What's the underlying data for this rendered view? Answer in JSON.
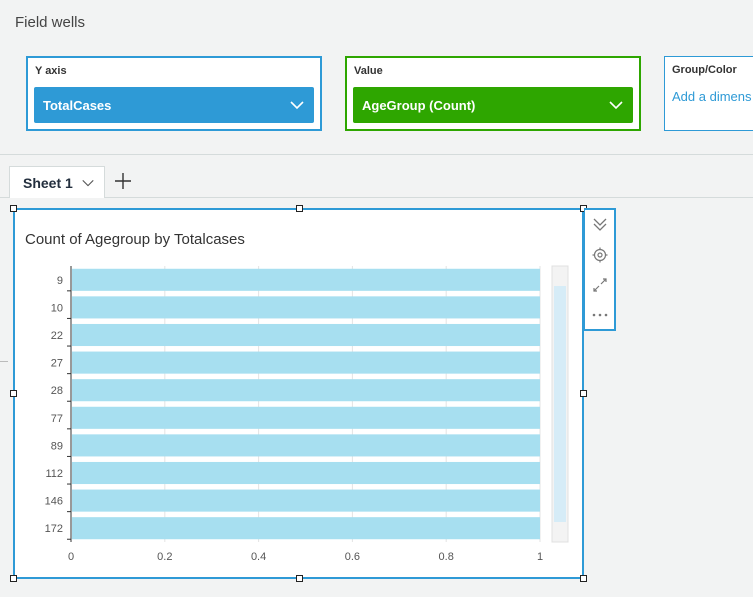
{
  "field_wells": {
    "title": "Field wells",
    "y_axis": {
      "label": "Y axis",
      "field": "TotalCases",
      "color": "#2e9ad6"
    },
    "value": {
      "label": "Value",
      "field": "AgeGroup (Count)",
      "color": "#2ea600"
    },
    "group_color": {
      "label": "Group/Color",
      "placeholder": "Add a dimens"
    }
  },
  "tabs": {
    "sheet1": "Sheet 1",
    "add_icon": "plus-icon"
  },
  "visual": {
    "title": "Count of Agegroup by Totalcases",
    "menu_icons": [
      "collapse-chevrons-icon",
      "gear-icon",
      "expand-icon",
      "more-icon"
    ]
  },
  "chart_data": {
    "type": "bar",
    "orientation": "horizontal",
    "title": "Count of Agegroup by Totalcases",
    "categories": [
      "9",
      "10",
      "22",
      "27",
      "28",
      "77",
      "89",
      "112",
      "146",
      "172"
    ],
    "values": [
      1,
      1,
      1,
      1,
      1,
      1,
      1,
      1,
      1,
      1
    ],
    "xlim": [
      0,
      1
    ],
    "xticks": [
      "0",
      "0.2",
      "0.4",
      "0.6",
      "0.8",
      "1"
    ],
    "bar_color": "#a7dff0",
    "xlabel": "",
    "ylabel": ""
  }
}
